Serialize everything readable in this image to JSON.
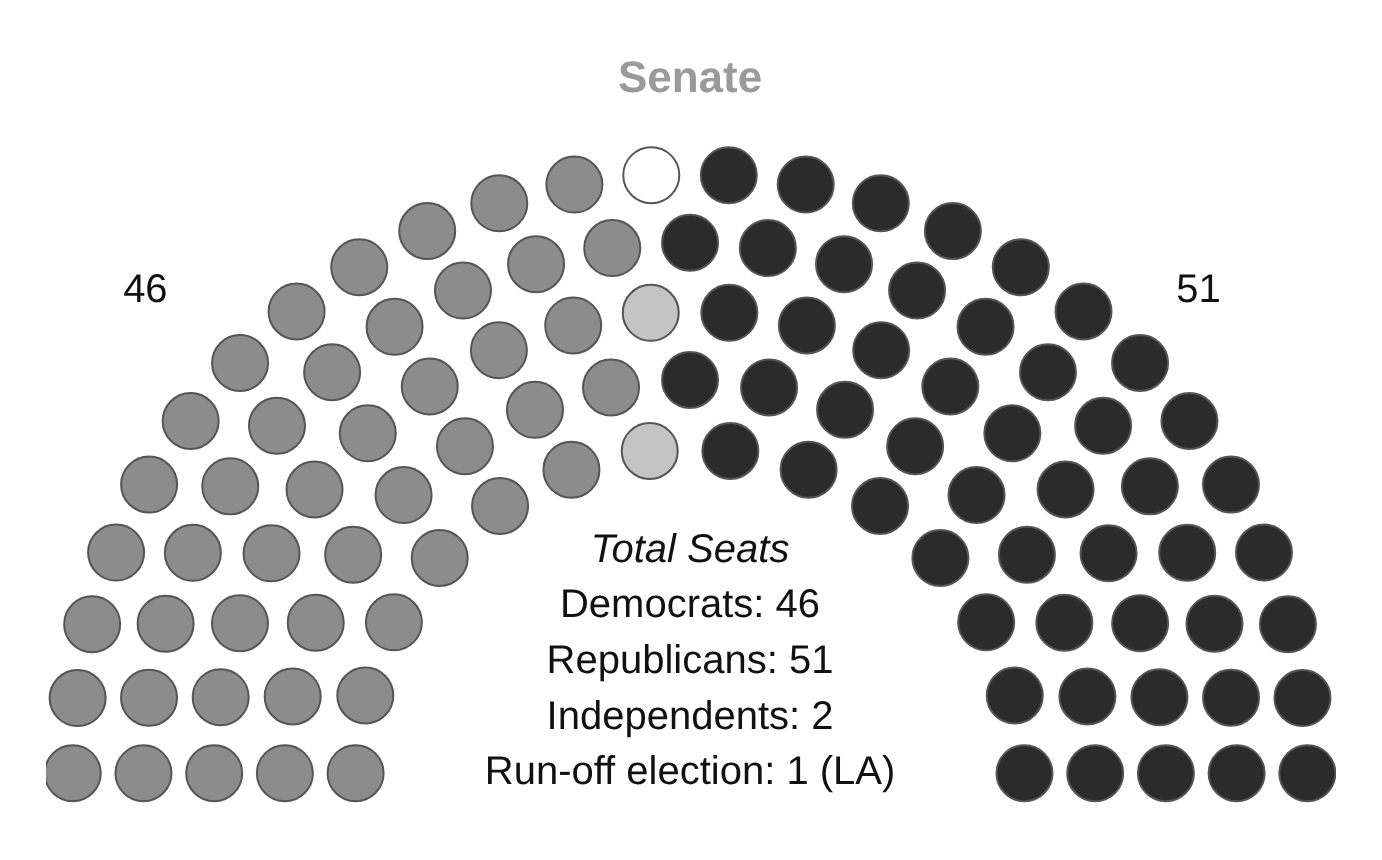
{
  "chart_data": {
    "type": "other",
    "title": "Senate",
    "values": [
      46,
      51,
      2,
      1
    ],
    "colors": [
      "#8c8c8c",
      "#2b2b2b",
      "#c4c4c4",
      "#ffffff"
    ],
    "value_labels": [
      "Democrats: 46",
      "Republicans: 51",
      "Independents: 2",
      "Run-off election: 1 (LA)"
    ],
    "annotations": [
      "46",
      "51",
      "Total Seats"
    ]
  }
}
